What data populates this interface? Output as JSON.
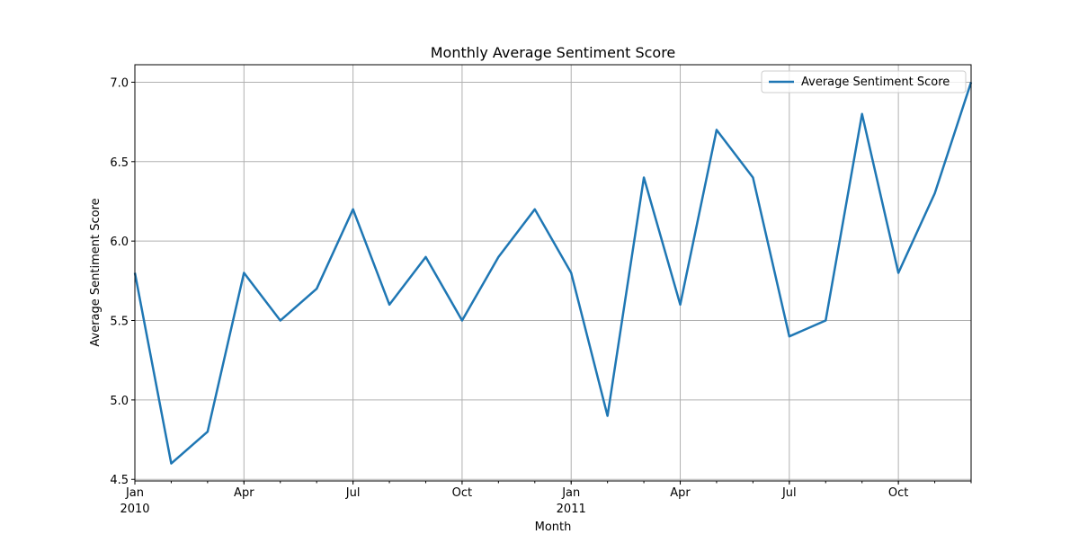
{
  "chart_data": {
    "type": "line",
    "title": "Monthly Average Sentiment Score",
    "xlabel": "Month",
    "ylabel": "Average Sentiment Score",
    "x": [
      "2010-01",
      "2010-02",
      "2010-03",
      "2010-04",
      "2010-05",
      "2010-06",
      "2010-07",
      "2010-08",
      "2010-09",
      "2010-10",
      "2010-11",
      "2010-12",
      "2011-01",
      "2011-02",
      "2011-03",
      "2011-04",
      "2011-05",
      "2011-06",
      "2011-07",
      "2011-08",
      "2011-09",
      "2011-10",
      "2011-11",
      "2011-12"
    ],
    "series": [
      {
        "name": "Average Sentiment Score",
        "color": "#1f77b4",
        "values": [
          5.8,
          4.6,
          4.8,
          5.8,
          5.5,
          5.7,
          6.2,
          5.6,
          5.9,
          5.5,
          5.9,
          6.2,
          5.8,
          4.9,
          6.4,
          5.6,
          6.7,
          6.4,
          5.4,
          5.5,
          6.8,
          5.8,
          6.3,
          7.0
        ]
      }
    ],
    "ylim": [
      4.49,
      7.11
    ],
    "y_ticks": [
      "4.5",
      "5.0",
      "5.5",
      "6.0",
      "6.5",
      "7.0"
    ],
    "x_ticks": [
      {
        "month": "2010-01",
        "label": "Jan",
        "sublabel": "2010"
      },
      {
        "month": "2010-04",
        "label": "Apr",
        "sublabel": ""
      },
      {
        "month": "2010-07",
        "label": "Jul",
        "sublabel": ""
      },
      {
        "month": "2010-10",
        "label": "Oct",
        "sublabel": ""
      },
      {
        "month": "2011-01",
        "label": "Jan",
        "sublabel": "2011"
      },
      {
        "month": "2011-04",
        "label": "Apr",
        "sublabel": ""
      },
      {
        "month": "2011-07",
        "label": "Jul",
        "sublabel": ""
      },
      {
        "month": "2011-10",
        "label": "Oct",
        "sublabel": ""
      }
    ],
    "grid": true,
    "legend_position": "upper right"
  }
}
